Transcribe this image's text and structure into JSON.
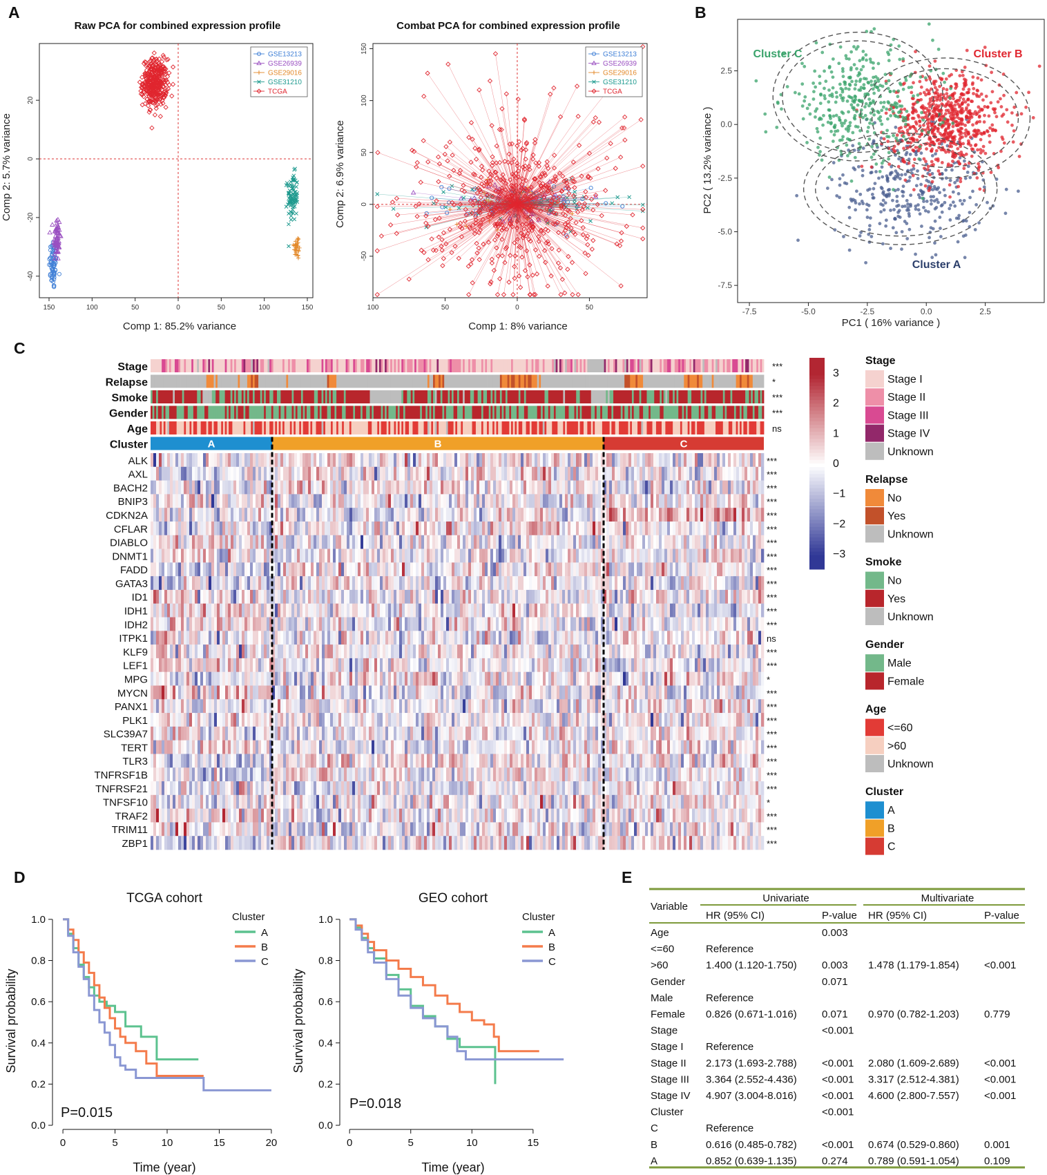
{
  "figure": {
    "panel_labels": [
      "A",
      "B",
      "C",
      "D",
      "E"
    ],
    "colors": {
      "gse13213": "#3f7fd6",
      "gse26939": "#9a4fc1",
      "gse29016": "#e3892a",
      "gse31210": "#1f9a8f",
      "tcga": "#e0262f",
      "cluster_a_pca": "#4a5e8f",
      "cluster_b_pca": "#e0262f",
      "cluster_c_pca": "#3aa36b",
      "km_a": "#5cc28f",
      "km_b": "#f47b4b",
      "km_c": "#8a97d3",
      "hm_cluster_a": "#1e8fd0",
      "hm_cluster_b": "#f0a028",
      "hm_cluster_c": "#d63b33",
      "green_rule": "#7d9a3b",
      "red_text": "#e0262f"
    }
  },
  "chart_data": [
    {
      "id": "raw-pca",
      "type": "scatter",
      "title": "Raw PCA for combined expression profile",
      "xlabel": "Comp 1: 85.2% variance",
      "ylabel": "Comp 2: 5.7% variance",
      "x_ticks": [
        "150",
        "100",
        "50",
        "0",
        "50",
        "100",
        "150"
      ],
      "y_ticks": [
        "-40",
        "-20",
        "0",
        "20"
      ],
      "xlim": [
        -150,
        150
      ],
      "ylim": [
        -45,
        37
      ],
      "legend": [
        "GSE13213",
        "GSE26939",
        "GSE29016",
        "GSE31210",
        "TCGA"
      ],
      "series": [
        {
          "name": "GSE13213",
          "cx": -145,
          "cy": -36,
          "sx": 2.5,
          "sy": 4.5,
          "n": 70
        },
        {
          "name": "GSE26939",
          "cx": -141,
          "cy": -27,
          "sx": 2.0,
          "sy": 4.0,
          "n": 60
        },
        {
          "name": "GSE29016",
          "cx": 138,
          "cy": -30,
          "sx": 2.0,
          "sy": 2.2,
          "n": 30
        },
        {
          "name": "GSE31210",
          "cx": 133,
          "cy": -13,
          "sx": 3.0,
          "sy": 4.0,
          "n": 90
        },
        {
          "name": "TCGA",
          "cx": -27,
          "cy": 26,
          "sx": 7,
          "sy": 4.0,
          "n": 380
        }
      ]
    },
    {
      "id": "combat-pca",
      "type": "scatter",
      "title": "Combat PCA for combined expression profile",
      "xlabel": "Comp 1: 8% variance",
      "ylabel": "Comp 2: 6.9% variance",
      "x_ticks": [
        "100",
        "50",
        "0",
        "50"
      ],
      "y_ticks": [
        "-50",
        "0",
        "50",
        "100",
        "150"
      ],
      "xlim": [
        -100,
        90
      ],
      "ylim": [
        -90,
        155
      ],
      "legend": [
        "GSE13213",
        "GSE26939",
        "GSE29016",
        "GSE31210",
        "TCGA"
      ],
      "series": [
        {
          "name": "GSE13213",
          "cx": 0,
          "cy": 0,
          "sx": 25,
          "sy": 10,
          "n": 60
        },
        {
          "name": "GSE26939",
          "cx": 0,
          "cy": 0,
          "sx": 30,
          "sy": 10,
          "n": 50
        },
        {
          "name": "GSE29016",
          "cx": 0,
          "cy": 0,
          "sx": 20,
          "sy": 10,
          "n": 40
        },
        {
          "name": "GSE31210",
          "cx": 0,
          "cy": 0,
          "sx": 40,
          "sy": 10,
          "n": 70
        },
        {
          "name": "TCGA",
          "cx": 0,
          "cy": 0,
          "sx": 30,
          "sy": 35,
          "n": 520
        }
      ]
    },
    {
      "id": "cluster-pca",
      "type": "scatter",
      "xlabel": "PC1 ( 16% variance )",
      "ylabel": "PC2 ( 13.2% variance )",
      "x_ticks": [
        "-7.5",
        "-5.0",
        "-2.5",
        "0.0",
        "2.5"
      ],
      "y_ticks": [
        "2.5",
        "0.0",
        "-2.5",
        "-5.0",
        "-7.5"
      ],
      "xlim": [
        -8.0,
        5.0
      ],
      "ylim": [
        -8.3,
        4.9
      ],
      "series": [
        {
          "name": "Cluster A",
          "cx": -0.7,
          "cy": -3.0,
          "sx": 1.6,
          "sy": 1.3,
          "n": 330
        },
        {
          "name": "Cluster B",
          "cx": 0.9,
          "cy": 0.1,
          "sx": 1.2,
          "sy": 1.2,
          "n": 700
        },
        {
          "name": "Cluster C",
          "cx": -2.8,
          "cy": 1.0,
          "sx": 1.6,
          "sy": 1.3,
          "n": 380
        }
      ],
      "ellipses": [
        {
          "cx": -2.9,
          "cy": 1.3,
          "rx": 3.6,
          "ry": 3.0
        },
        {
          "cx": -2.9,
          "cy": 1.3,
          "rx": 3.2,
          "ry": 2.6
        },
        {
          "cx": 0.8,
          "cy": 0.3,
          "rx": 3.6,
          "ry": 2.8
        },
        {
          "cx": 0.8,
          "cy": 0.3,
          "rx": 3.1,
          "ry": 2.3
        },
        {
          "cx": -1.1,
          "cy": -3.0,
          "rx": 4.1,
          "ry": 2.6
        },
        {
          "cx": -1.1,
          "cy": -3.0,
          "rx": 3.6,
          "ry": 2.2
        }
      ],
      "cluster_labels": [
        "Cluster C",
        "Cluster B",
        "Cluster A"
      ]
    },
    {
      "id": "km-tcga",
      "type": "line",
      "title": "TCGA cohort",
      "xlabel": "Time (year)",
      "ylabel": "Survival probability",
      "x_ticks": [
        0,
        5,
        10,
        15,
        20
      ],
      "y_ticks": [
        "0.0",
        "0.2",
        "0.4",
        "0.6",
        "0.8",
        "1.0"
      ],
      "xlim": [
        -1,
        21
      ],
      "ylim": [
        -0.02,
        1.06
      ],
      "legend_title": "Cluster",
      "pvalue": "P=0.015",
      "series": [
        {
          "name": "A",
          "x": [
            0,
            0.5,
            1,
            1.5,
            2,
            2.5,
            3,
            3.5,
            4.2,
            5,
            6,
            7.5,
            9,
            10,
            13
          ],
          "y": [
            1.0,
            0.93,
            0.86,
            0.78,
            0.72,
            0.67,
            0.63,
            0.6,
            0.58,
            0.55,
            0.48,
            0.43,
            0.32,
            0.32,
            0.32
          ]
        },
        {
          "name": "B",
          "x": [
            0,
            0.5,
            1,
            1.5,
            2,
            2.5,
            3,
            3.5,
            4,
            4.5,
            5,
            5.5,
            6,
            7,
            8,
            9,
            10,
            11,
            13.5
          ],
          "y": [
            1.0,
            0.95,
            0.9,
            0.84,
            0.79,
            0.74,
            0.68,
            0.62,
            0.57,
            0.52,
            0.47,
            0.43,
            0.4,
            0.36,
            0.3,
            0.24,
            0.24,
            0.24,
            0.24
          ]
        },
        {
          "name": "C",
          "x": [
            0,
            0.5,
            1,
            1.5,
            2,
            2.5,
            3,
            3.5,
            4,
            4.5,
            5,
            5.5,
            6,
            7,
            9,
            10,
            13.5,
            20
          ],
          "y": [
            1.0,
            0.92,
            0.84,
            0.77,
            0.71,
            0.63,
            0.56,
            0.5,
            0.45,
            0.39,
            0.33,
            0.29,
            0.27,
            0.23,
            0.23,
            0.23,
            0.17,
            0.17
          ]
        }
      ]
    },
    {
      "id": "km-geo",
      "type": "line",
      "title": "GEO cohort",
      "xlabel": "Time (year)",
      "ylabel": "Survival probability",
      "x_ticks": [
        0,
        5,
        10,
        15
      ],
      "y_ticks": [
        "0.0",
        "0.2",
        "0.4",
        "0.6",
        "0.8",
        "1.0"
      ],
      "xlim": [
        -0.8,
        18
      ],
      "ylim": [
        -0.02,
        1.06
      ],
      "legend_title": "Cluster",
      "pvalue": "P=0.018",
      "series": [
        {
          "name": "A",
          "x": [
            0,
            0.5,
            1,
            1.5,
            2,
            3,
            4,
            5,
            6,
            7,
            8,
            9,
            10,
            11,
            11.8,
            11.9
          ],
          "y": [
            1.0,
            0.96,
            0.91,
            0.86,
            0.81,
            0.73,
            0.66,
            0.58,
            0.53,
            0.48,
            0.42,
            0.38,
            0.38,
            0.38,
            0.38,
            0.2
          ]
        },
        {
          "name": "B",
          "x": [
            0,
            0.5,
            1,
            1.5,
            2,
            3,
            4,
            5,
            6,
            7,
            8,
            9,
            10,
            11,
            11.8,
            12.2,
            15.5
          ],
          "y": [
            1.0,
            0.97,
            0.93,
            0.89,
            0.85,
            0.8,
            0.76,
            0.72,
            0.68,
            0.63,
            0.59,
            0.55,
            0.51,
            0.49,
            0.43,
            0.36,
            0.36
          ]
        },
        {
          "name": "C",
          "x": [
            0,
            0.5,
            1,
            1.5,
            2,
            3,
            4,
            5,
            6,
            7,
            8,
            8.8,
            9.5,
            10,
            13,
            17.5
          ],
          "y": [
            1.0,
            0.95,
            0.9,
            0.84,
            0.79,
            0.71,
            0.63,
            0.57,
            0.52,
            0.48,
            0.43,
            0.36,
            0.32,
            0.32,
            0.32,
            0.32
          ]
        }
      ]
    }
  ],
  "heatmap": {
    "annotation_rows": [
      "Stage",
      "Relapse",
      "Smoke",
      "Gender",
      "Age",
      "Cluster"
    ],
    "annotation_sig": [
      "***",
      "*",
      "***",
      "***",
      "ns",
      ""
    ],
    "genes": [
      "ALK",
      "AXL",
      "BACH2",
      "BNIP3",
      "CDKN2A",
      "CFLAR",
      "DIABLO",
      "DNMT1",
      "FADD",
      "GATA3",
      "ID1",
      "IDH1",
      "IDH2",
      "ITPK1",
      "KLF9",
      "LEF1",
      "MPG",
      "MYCN",
      "PANX1",
      "PLK1",
      "SLC39A7",
      "TERT",
      "TLR3",
      "TNFRSF1B",
      "TNFRSF21",
      "TNFSF10",
      "TRAF2",
      "TRIM11",
      "ZBP1"
    ],
    "gene_sig": [
      "***",
      "***",
      "***",
      "***",
      "***",
      "***",
      "***",
      "***",
      "***",
      "***",
      "***",
      "***",
      "***",
      "ns",
      "***",
      "***",
      "*",
      "***",
      "***",
      "***",
      "***",
      "***",
      "***",
      "***",
      "***",
      "*",
      "***",
      "***",
      "***"
    ],
    "gene_sig_color": [
      "k",
      "g",
      "k",
      "k",
      "k",
      "k",
      "k",
      "g",
      "k",
      "k",
      "k",
      "k",
      "k",
      "k",
      "k",
      "k",
      "k",
      "k",
      "k",
      "k",
      "g",
      "k",
      "k",
      "k",
      "k",
      "k",
      "k",
      "k",
      "k"
    ],
    "gene_mean_by_cluster": [
      [
        0.0,
        0.15,
        0.05
      ],
      [
        -0.3,
        0.2,
        0.05
      ],
      [
        -0.2,
        0.15,
        -0.1
      ],
      [
        0.15,
        -0.1,
        0.05
      ],
      [
        -0.15,
        -0.05,
        0.6
      ],
      [
        -0.3,
        0.1,
        0.05
      ],
      [
        0.15,
        -0.1,
        0.0
      ],
      [
        0.05,
        -0.05,
        0.05
      ],
      [
        -0.25,
        0.05,
        0.1
      ],
      [
        -0.3,
        0.15,
        -0.05
      ],
      [
        0.1,
        -0.1,
        0.1
      ],
      [
        0.2,
        -0.05,
        -0.1
      ],
      [
        0.25,
        -0.1,
        -0.15
      ],
      [
        -0.05,
        0.0,
        0.1
      ],
      [
        0.0,
        0.1,
        -0.05
      ],
      [
        0.2,
        -0.05,
        -0.1
      ],
      [
        -0.1,
        0.0,
        0.1
      ],
      [
        0.4,
        -0.15,
        -0.1
      ],
      [
        0.05,
        -0.1,
        0.2
      ],
      [
        0.1,
        -0.05,
        0.05
      ],
      [
        0.0,
        -0.05,
        0.15
      ],
      [
        0.1,
        -0.15,
        0.15
      ],
      [
        -0.4,
        0.15,
        0.0
      ],
      [
        -0.35,
        0.15,
        -0.05
      ],
      [
        0.0,
        -0.1,
        0.1
      ],
      [
        -0.2,
        0.05,
        0.05
      ],
      [
        0.25,
        -0.05,
        0.0
      ],
      [
        0.1,
        -0.05,
        0.05
      ],
      [
        -0.45,
        0.1,
        0.05
      ]
    ],
    "cluster_labels": [
      "A",
      "B",
      "C"
    ],
    "cluster_fraction": [
      0.2,
      0.54,
      0.26
    ],
    "color_scale": [
      "3",
      "2",
      "1",
      "0",
      "−1",
      "−2",
      "−3"
    ],
    "legends": [
      {
        "title": "Stage",
        "items": [
          [
            "Stage I",
            "#f5d2cf"
          ],
          [
            "Stage II",
            "#ee8fa8"
          ],
          [
            "Stage III",
            "#d94a92"
          ],
          [
            "Stage IV",
            "#92286a"
          ],
          [
            "Unknown",
            "#bdbdbd"
          ]
        ]
      },
      {
        "title": "Relapse",
        "items": [
          [
            "No",
            "#f08a3a"
          ],
          [
            "Yes",
            "#c2512a"
          ],
          [
            "Unknown",
            "#bdbdbd"
          ]
        ]
      },
      {
        "title": "Smoke",
        "items": [
          [
            "No",
            "#73b88a"
          ],
          [
            "Yes",
            "#b8262c"
          ],
          [
            "Unknown",
            "#bdbdbd"
          ]
        ]
      },
      {
        "title": "Gender",
        "items": [
          [
            "Male",
            "#73b88a"
          ],
          [
            "Female",
            "#b8262c"
          ]
        ]
      },
      {
        "title": "Age",
        "items": [
          [
            "<=60",
            "#e23b36"
          ],
          [
            ">60",
            "#f6cfc0"
          ],
          [
            "Unknown",
            "#bdbdbd"
          ]
        ]
      },
      {
        "title": "Cluster",
        "items": [
          [
            "A",
            "#1e8fd0"
          ],
          [
            "B",
            "#f0a028"
          ],
          [
            "C",
            "#d63b33"
          ]
        ]
      }
    ]
  },
  "cox_table": {
    "header": {
      "variable": "Variable",
      "univariate": "Univariate",
      "multivariate": "Multivariate",
      "hr": "HR (95% CI)",
      "p": "P-value"
    },
    "rows": [
      {
        "v": "Age",
        "uhr": "",
        "up": "0.003",
        "mhr": "",
        "mp": "",
        "red": true
      },
      {
        "v": "<=60",
        "uhr": "Reference",
        "up": "",
        "mhr": "",
        "mp": "",
        "red": false
      },
      {
        "v": ">60",
        "uhr": "1.400 (1.120-1.750)",
        "up": "0.003",
        "mhr": "1.478 (1.179-1.854)",
        "mp": "<0.001",
        "red": true
      },
      {
        "v": "Gender",
        "uhr": "",
        "up": "0.071",
        "mhr": "",
        "mp": "",
        "red": false
      },
      {
        "v": "Male",
        "uhr": "Reference",
        "up": "",
        "mhr": "",
        "mp": "",
        "red": false
      },
      {
        "v": "Female",
        "uhr": "0.826 (0.671-1.016)",
        "up": "0.071",
        "mhr": "0.970 (0.782-1.203)",
        "mp": "0.779",
        "red": false
      },
      {
        "v": "Stage",
        "uhr": "",
        "up": "<0.001",
        "mhr": "",
        "mp": "",
        "red": true
      },
      {
        "v": "Stage I",
        "uhr": "Reference",
        "up": "",
        "mhr": "",
        "mp": "",
        "red": false
      },
      {
        "v": "Stage II",
        "uhr": "2.173 (1.693-2.788)",
        "up": "<0.001",
        "mhr": "2.080 (1.609-2.689)",
        "mp": "<0.001",
        "red": true
      },
      {
        "v": "Stage III",
        "uhr": "3.364 (2.552-4.436)",
        "up": "<0.001",
        "mhr": "3.317 (2.512-4.381)",
        "mp": "<0.001",
        "red": true
      },
      {
        "v": "Stage IV",
        "uhr": "4.907 (3.004-8.016)",
        "up": "<0.001",
        "mhr": "4.600 (2.800-7.557)",
        "mp": "<0.001",
        "red": true
      },
      {
        "v": "Cluster",
        "uhr": "",
        "up": "<0.001",
        "mhr": "",
        "mp": "",
        "red": true
      },
      {
        "v": "C",
        "uhr": "Reference",
        "up": "",
        "mhr": "",
        "mp": "",
        "red": false
      },
      {
        "v": "B",
        "uhr": "0.616 (0.485-0.782)",
        "up": "<0.001",
        "mhr": "0.674 (0.529-0.860)",
        "mp": "0.001",
        "red": true
      },
      {
        "v": "A",
        "uhr": "0.852 (0.639-1.135)",
        "up": "0.274",
        "mhr": "0.789 (0.591-1.054)",
        "mp": "0.109",
        "red": false
      }
    ]
  }
}
